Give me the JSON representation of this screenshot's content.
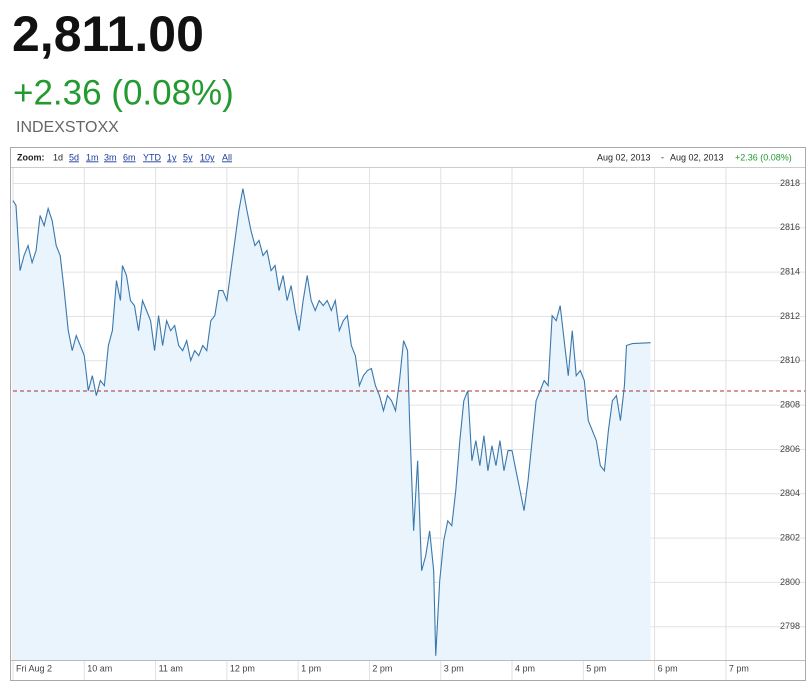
{
  "header": {
    "price": "2,811.00",
    "change": "+2.36 (0.08%)",
    "symbol": "INDEXSTOXX"
  },
  "toolbar": {
    "zoom_label": "Zoom:",
    "zoom_options": [
      "1d",
      "5d",
      "1m",
      "3m",
      "6m",
      "YTD",
      "1y",
      "5y",
      "10y",
      "All"
    ],
    "range_start": "Aug 02, 2013",
    "range_separator": "-",
    "range_end": "Aug 02, 2013",
    "range_change": "+2.36 (0.08%)"
  },
  "chart_data": {
    "type": "line",
    "color": "#3a78ad",
    "fill_color": "#e9f4fd",
    "grid": true,
    "reference_line": 2808.64,
    "reference_color": "#a83232",
    "x": [
      9.0,
      9.042,
      9.099,
      9.155,
      9.211,
      9.268,
      9.324,
      9.38,
      9.437,
      9.493,
      9.549,
      9.606,
      9.662,
      9.718,
      9.775,
      9.831,
      9.887,
      9.944,
      10.0,
      10.056,
      10.113,
      10.169,
      10.225,
      10.282,
      10.338,
      10.394,
      10.451,
      10.507,
      10.535,
      10.592,
      10.648,
      10.704,
      10.761,
      10.817,
      10.873,
      10.93,
      10.986,
      11.042,
      11.099,
      11.155,
      11.211,
      11.268,
      11.324,
      11.38,
      11.437,
      11.493,
      11.549,
      11.606,
      11.662,
      11.718,
      11.775,
      11.831,
      11.887,
      11.944,
      12.0,
      12.056,
      12.113,
      12.169,
      12.225,
      12.282,
      12.338,
      12.394,
      12.451,
      12.507,
      12.563,
      12.62,
      12.676,
      12.732,
      12.789,
      12.845,
      12.901,
      12.958,
      13.014,
      13.07,
      13.127,
      13.183,
      13.239,
      13.296,
      13.352,
      13.408,
      13.465,
      13.521,
      13.577,
      13.634,
      13.69,
      13.746,
      13.803,
      13.859,
      13.915,
      13.972,
      14.028,
      14.084,
      14.141,
      14.197,
      14.253,
      14.31,
      14.366,
      14.422,
      14.479,
      14.535,
      14.563,
      14.62,
      14.676,
      14.732,
      14.789,
      14.845,
      14.901,
      14.93,
      14.986,
      15.042,
      15.099,
      15.155,
      15.211,
      15.268,
      15.324,
      15.38,
      15.437,
      15.493,
      15.549,
      15.606,
      15.662,
      15.718,
      15.775,
      15.831,
      15.887,
      15.944,
      16.0,
      16.056,
      16.113,
      16.169,
      16.225,
      16.282,
      16.338,
      16.394,
      16.451,
      16.507,
      16.563,
      16.62,
      16.676,
      16.732,
      16.789,
      16.845,
      16.901,
      16.958,
      17.014,
      17.07,
      17.127,
      17.183,
      17.239,
      17.296,
      17.352,
      17.408,
      17.465,
      17.521,
      17.577,
      17.606,
      17.69,
      17.944
    ],
    "values": [
      2817.23,
      2817.01,
      2814.07,
      2814.75,
      2815.2,
      2814.43,
      2814.98,
      2816.56,
      2816.1,
      2816.87,
      2816.33,
      2815.2,
      2814.75,
      2813.17,
      2811.36,
      2810.46,
      2811.14,
      2810.69,
      2810.23,
      2808.65,
      2809.33,
      2808.43,
      2809.11,
      2808.88,
      2810.69,
      2811.36,
      2813.62,
      2812.72,
      2814.3,
      2813.85,
      2812.72,
      2812.49,
      2811.36,
      2812.72,
      2812.27,
      2811.81,
      2810.46,
      2812.04,
      2810.69,
      2811.81,
      2811.36,
      2811.59,
      2810.69,
      2810.46,
      2810.91,
      2810.01,
      2810.46,
      2810.23,
      2810.69,
      2810.46,
      2811.81,
      2812.04,
      2813.17,
      2813.17,
      2812.72,
      2814.07,
      2815.43,
      2816.78,
      2817.77,
      2816.78,
      2815.88,
      2815.2,
      2815.43,
      2814.75,
      2814.98,
      2814.07,
      2814.3,
      2813.17,
      2813.85,
      2812.72,
      2813.4,
      2812.27,
      2811.36,
      2812.72,
      2813.85,
      2812.72,
      2812.27,
      2812.72,
      2812.49,
      2812.72,
      2812.27,
      2812.72,
      2811.36,
      2811.81,
      2812.04,
      2810.69,
      2810.23,
      2808.88,
      2809.33,
      2809.56,
      2809.65,
      2808.88,
      2808.43,
      2807.75,
      2808.43,
      2808.2,
      2807.75,
      2809.11,
      2810.91,
      2810.46,
      2807.3,
      2802.33,
      2805.49,
      2800.53,
      2801.2,
      2802.33,
      2800.53,
      2796.69,
      2800.08,
      2801.88,
      2802.78,
      2802.56,
      2804.14,
      2806.4,
      2808.2,
      2808.65,
      2805.49,
      2806.4,
      2805.27,
      2806.62,
      2805.04,
      2806.17,
      2805.27,
      2806.4,
      2805.04,
      2805.95,
      2805.95,
      2805.04,
      2804.14,
      2803.24,
      2804.59,
      2806.4,
      2808.2,
      2808.65,
      2809.11,
      2808.88,
      2812.04,
      2811.81,
      2812.49,
      2810.91,
      2809.33,
      2811.36,
      2809.33,
      2809.56,
      2809.11,
      2807.3,
      2806.85,
      2806.4,
      2805.27,
      2805.04,
      2806.85,
      2808.2,
      2808.43,
      2807.3,
      2808.88,
      2810.69,
      2810.78,
      2810.82
    ],
    "xlim": [
      9.0,
      20.11
    ],
    "xticks": [
      {
        "value": 9,
        "label": "Fri Aug 2"
      },
      {
        "value": 10,
        "label": "10 am"
      },
      {
        "value": 11,
        "label": "11 am"
      },
      {
        "value": 12,
        "label": "12 pm"
      },
      {
        "value": 13,
        "label": "1 pm"
      },
      {
        "value": 14,
        "label": "2 pm"
      },
      {
        "value": 15,
        "label": "3 pm"
      },
      {
        "value": 16,
        "label": "4 pm"
      },
      {
        "value": 17,
        "label": "5 pm"
      },
      {
        "value": 18,
        "label": "6 pm"
      },
      {
        "value": 19,
        "label": "7 pm"
      }
    ],
    "ylim": [
      2796.5,
      2818.7
    ],
    "yticks": [
      2798,
      2800,
      2802,
      2804,
      2806,
      2808,
      2810,
      2812,
      2814,
      2816,
      2818
    ]
  }
}
